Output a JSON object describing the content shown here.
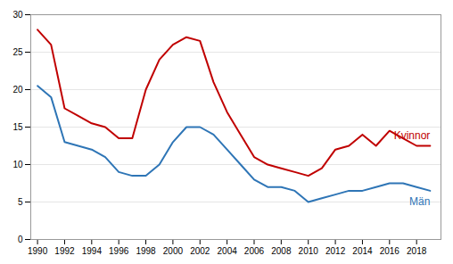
{
  "chart_data": {
    "type": "line",
    "x": [
      1990,
      1991,
      1992,
      1993,
      1994,
      1995,
      1996,
      1997,
      1998,
      1999,
      2000,
      2001,
      2002,
      2003,
      2004,
      2005,
      2006,
      2007,
      2008,
      2009,
      2010,
      2011,
      2012,
      2013,
      2014,
      2015,
      2016,
      2017,
      2018,
      2019
    ],
    "series": [
      {
        "name": "Kvinnor",
        "color": "#C00000",
        "values": [
          28,
          26,
          17.5,
          16.5,
          15.5,
          15,
          13.5,
          13.5,
          20,
          24,
          26,
          27,
          26.5,
          21,
          17,
          14,
          11,
          10,
          9.5,
          9,
          8.5,
          9.5,
          12,
          12.5,
          14,
          12.5,
          14.5,
          13.5,
          12.5,
          12.5
        ]
      },
      {
        "name": "Män",
        "color": "#2E75B6",
        "values": [
          20.5,
          19,
          13,
          12.5,
          12,
          11,
          9,
          8.5,
          8.5,
          10,
          13,
          15,
          15,
          14,
          12,
          10,
          8,
          7,
          7,
          6.5,
          5,
          5.5,
          6,
          6.5,
          6.5,
          7,
          7.5,
          7.5,
          7,
          6.5
        ]
      }
    ],
    "xlim": [
      1989.5,
      2019.8
    ],
    "xticks": [
      1990,
      1992,
      1994,
      1996,
      1998,
      2000,
      2002,
      2004,
      2006,
      2008,
      2010,
      2012,
      2014,
      2016,
      2018
    ],
    "ylim": [
      0,
      30
    ],
    "yticks": [
      0,
      5,
      10,
      15,
      20,
      25,
      30
    ],
    "grid": true
  }
}
